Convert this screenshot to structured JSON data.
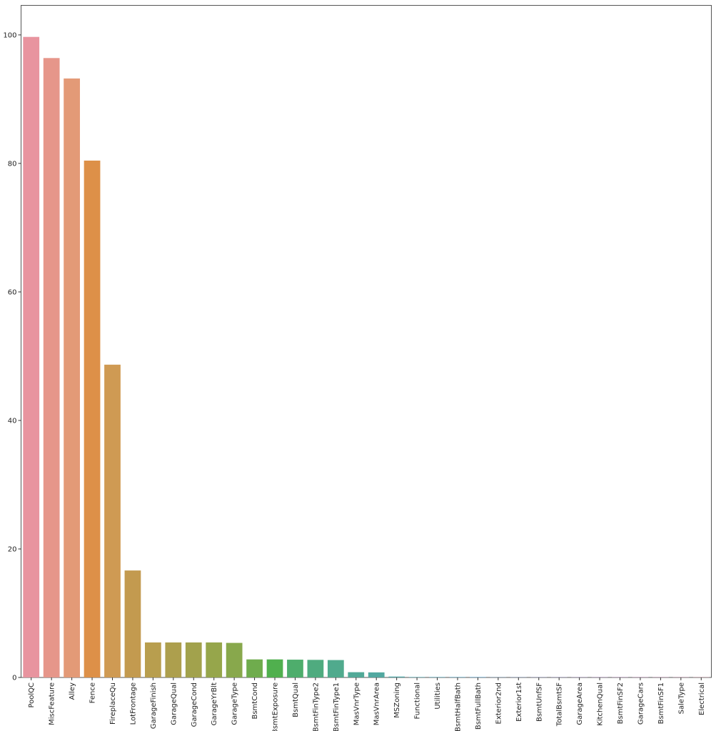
{
  "chart_data": {
    "type": "bar",
    "categories": [
      "PoolQC",
      "MiscFeature",
      "Alley",
      "Fence",
      "FireplaceQu",
      "LotFrontage",
      "GarageFinish",
      "GarageQual",
      "GarageCond",
      "GarageYrBlt",
      "GarageType",
      "BsmtCond",
      "BsmtExposure",
      "BsmtQual",
      "BsmtFinType2",
      "BsmtFinType1",
      "MasVnrType",
      "MasVnrArea",
      "MSZoning",
      "Functional",
      "Utilities",
      "BsmtHalfBath",
      "BsmtFullBath",
      "Exterior2nd",
      "Exterior1st",
      "BsmtUnfSF",
      "TotalBsmtSF",
      "GarageArea",
      "KitchenQual",
      "BsmtFinSF2",
      "GarageCars",
      "BsmtFinSF1",
      "SaleType",
      "Electrical"
    ],
    "values": [
      99.69,
      96.4,
      93.22,
      80.44,
      48.68,
      16.65,
      5.45,
      5.45,
      5.45,
      5.45,
      5.38,
      2.81,
      2.81,
      2.77,
      2.74,
      2.71,
      0.82,
      0.79,
      0.14,
      0.07,
      0.07,
      0.07,
      0.07,
      0.03,
      0.03,
      0.03,
      0.03,
      0.03,
      0.03,
      0.03,
      0.03,
      0.03,
      0.03,
      0.03
    ],
    "colors": [
      "#e8949f",
      "#e6968a",
      "#e39a77",
      "#dd9048",
      "#cf9a53",
      "#c39a4f",
      "#b89e4e",
      "#ad9f4d",
      "#a2a24c",
      "#96a64b",
      "#88a84c",
      "#6fac4d",
      "#50b04e",
      "#4ead6c",
      "#4fab7f",
      "#50aa8d",
      "#51a997",
      "#52a8a0",
      "#53a7a8",
      "#54a6b0",
      "#56a5b8",
      "#58a4c1",
      "#5ba2cb",
      "#64a0d6",
      "#7a9ce0",
      "#8e98e3",
      "#a293e5",
      "#b38ee4",
      "#c48ae0",
      "#d388db",
      "#df88d0",
      "#e489c3",
      "#e68cb6",
      "#e890aa"
    ],
    "ylim": [
      0,
      104.6
    ],
    "yticks": [
      0,
      20,
      40,
      60,
      80,
      100
    ],
    "grid": false
  }
}
